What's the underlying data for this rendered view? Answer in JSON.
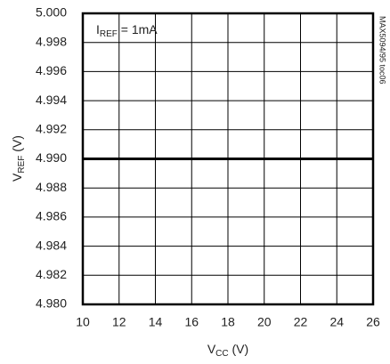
{
  "chart_data": {
    "type": "line",
    "x": [
      10,
      26
    ],
    "series": [
      {
        "color": "#000000",
        "values": [
          4.99,
          4.99
        ]
      }
    ],
    "xlim": [
      10,
      26
    ],
    "xticks": [
      10,
      12,
      14,
      16,
      18,
      20,
      22,
      24,
      26
    ],
    "ylim": [
      4.98,
      5.0
    ],
    "yticks": [
      {
        "value": 4.98,
        "label": "4.980"
      },
      {
        "value": 4.982,
        "label": "4.982"
      },
      {
        "value": 4.984,
        "label": "4.984"
      },
      {
        "value": 4.986,
        "label": "4.986"
      },
      {
        "value": 4.988,
        "label": "4.988"
      },
      {
        "value": 4.99,
        "label": "4.990"
      },
      {
        "value": 4.992,
        "label": "4.992"
      },
      {
        "value": 4.994,
        "label": "4.994"
      },
      {
        "value": 4.996,
        "label": "4.996"
      },
      {
        "value": 4.998,
        "label": "4.998"
      },
      {
        "value": 5.0,
        "label": "5.000"
      }
    ],
    "grid": true,
    "x_label": [
      "V",
      "CC",
      " (V)"
    ],
    "y_label": [
      "V",
      "REF",
      " (V)"
    ],
    "annotation": [
      "I",
      "REF",
      " = 1mA"
    ],
    "side_note": "MAX5094/95 toc06"
  }
}
